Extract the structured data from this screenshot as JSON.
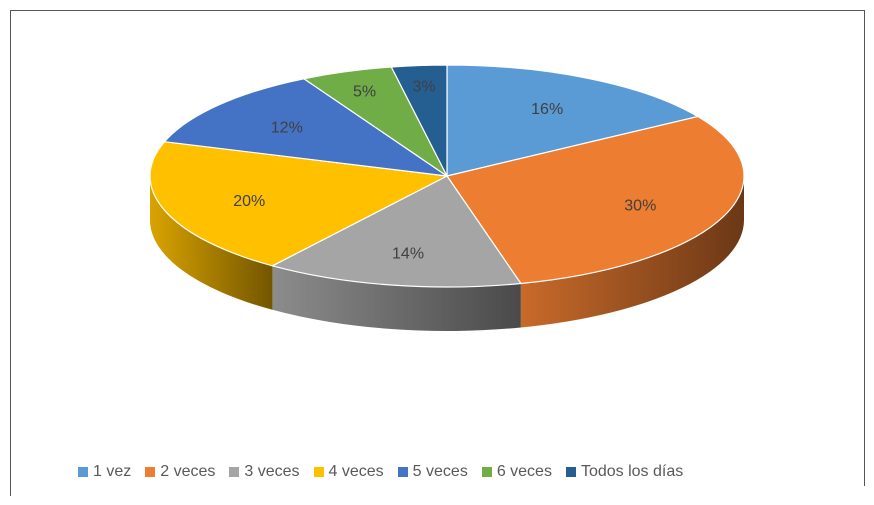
{
  "chart_data": {
    "type": "pie",
    "style": "3d",
    "categories": [
      "1 vez",
      "2 veces",
      "3 veces",
      "4 veces",
      "5 veces",
      "6 veces",
      "Todos los días"
    ],
    "values": [
      16,
      30,
      14,
      20,
      12,
      5,
      3
    ],
    "data_labels": [
      "16%",
      "30%",
      "14%",
      "20%",
      "12%",
      "5%",
      "3%"
    ],
    "colors": [
      "#5B9BD5",
      "#ED7D31",
      "#A5A5A5",
      "#FFC000",
      "#4472C4",
      "#70AD47",
      "#255E91"
    ],
    "legend_position": "bottom"
  }
}
